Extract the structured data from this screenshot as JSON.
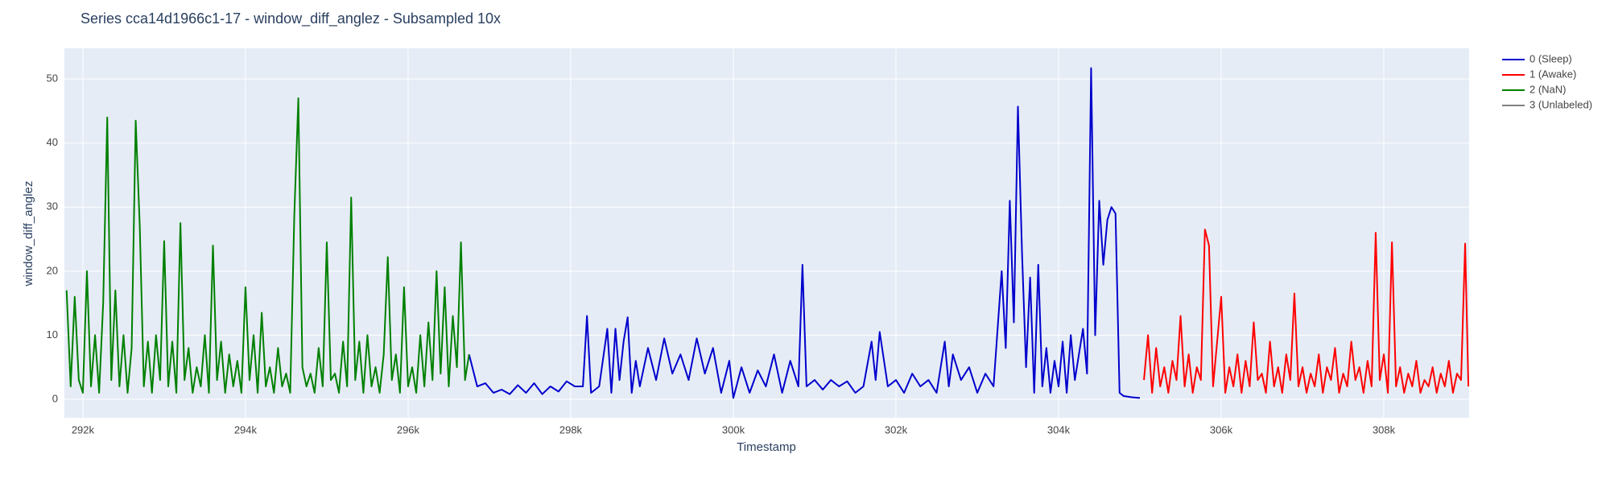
{
  "chart_data": {
    "type": "line",
    "title": "Series cca14d1966c1-17 - window_diff_anglez - Subsampled 10x",
    "x_label": "Timestamp",
    "y_label": "window_diff_anglez",
    "xlim": [
      291773,
      309049
    ],
    "ylim": [
      -2.9,
      54.8
    ],
    "xticks": [
      {
        "value": 292000,
        "label": "292k"
      },
      {
        "value": 294000,
        "label": "294k"
      },
      {
        "value": 296000,
        "label": "296k"
      },
      {
        "value": 298000,
        "label": "298k"
      },
      {
        "value": 300000,
        "label": "300k"
      },
      {
        "value": 302000,
        "label": "302k"
      },
      {
        "value": 304000,
        "label": "304k"
      },
      {
        "value": 306000,
        "label": "306k"
      },
      {
        "value": 308000,
        "label": "308k"
      }
    ],
    "yticks": [
      0,
      10,
      20,
      30,
      40,
      50
    ],
    "grid": true,
    "legend": "right",
    "series": [
      {
        "name": "0 (Sleep)",
        "color": "#0000cc",
        "x": [
          296750,
          296850,
          296950,
          297050,
          297150,
          297250,
          297350,
          297450,
          297550,
          297650,
          297750,
          297850,
          297950,
          298050,
          298150,
          298200,
          298250,
          298350,
          298450,
          298500,
          298550,
          298600,
          298650,
          298700,
          298750,
          298800,
          298850,
          298950,
          299050,
          299150,
          299250,
          299350,
          299450,
          299550,
          299650,
          299750,
          299850,
          299950,
          300000,
          300100,
          300200,
          300300,
          300400,
          300500,
          300600,
          300700,
          300800,
          300850,
          300900,
          301000,
          301100,
          301200,
          301300,
          301400,
          301500,
          301600,
          301700,
          301750,
          301800,
          301900,
          302000,
          302100,
          302200,
          302300,
          302400,
          302500,
          302600,
          302650,
          302700,
          302800,
          302900,
          303000,
          303100,
          303200,
          303300,
          303350,
          303400,
          303450,
          303500,
          303550,
          303600,
          303650,
          303700,
          303750,
          303800,
          303850,
          303900,
          303950,
          304000,
          304050,
          304100,
          304150,
          304200,
          304250,
          304300,
          304350,
          304400,
          304450,
          304500,
          304550,
          304600,
          304650,
          304700,
          304750,
          304800,
          304900,
          305000
        ],
        "values": [
          7,
          2,
          2.5,
          1,
          1.5,
          0.8,
          2.2,
          1,
          2.5,
          0.8,
          2,
          1.2,
          2.8,
          2,
          2,
          13,
          1,
          2,
          11,
          1,
          11,
          3,
          9,
          12.8,
          1,
          6,
          2,
          8,
          3,
          9.5,
          4,
          7,
          3,
          9.5,
          4,
          8,
          1,
          6,
          0.2,
          5,
          1,
          4.5,
          2,
          7,
          1,
          6,
          2,
          21,
          2,
          3,
          1.5,
          3,
          2,
          2.8,
          1,
          2,
          9,
          3,
          10.5,
          2,
          3,
          1,
          4,
          2,
          3,
          1,
          9,
          2,
          7,
          3,
          5,
          1,
          4,
          2,
          20,
          8,
          31,
          12,
          45.7,
          23,
          5,
          19,
          1,
          21,
          2,
          8,
          1,
          6,
          2,
          9,
          1,
          10,
          3,
          7,
          11,
          4,
          51.7,
          10,
          31,
          21,
          28,
          30,
          29,
          1,
          0.5,
          0.3,
          0.2
        ]
      },
      {
        "name": "1 (Awake)",
        "color": "#ff0000",
        "x": [
          305050,
          305100,
          305150,
          305200,
          305250,
          305300,
          305350,
          305400,
          305450,
          305500,
          305550,
          305600,
          305650,
          305700,
          305750,
          305800,
          305850,
          305900,
          305950,
          306000,
          306050,
          306100,
          306150,
          306200,
          306250,
          306300,
          306350,
          306400,
          306450,
          306500,
          306550,
          306600,
          306650,
          306700,
          306750,
          306800,
          306850,
          306900,
          306950,
          307000,
          307050,
          307100,
          307150,
          307200,
          307250,
          307300,
          307350,
          307400,
          307450,
          307500,
          307550,
          307600,
          307650,
          307700,
          307750,
          307800,
          307850,
          307900,
          307950,
          308000,
          308050,
          308100,
          308150,
          308200,
          308250,
          308300,
          308350,
          308400,
          308450,
          308500,
          308550,
          308600,
          308650,
          308700,
          308750,
          308800,
          308850,
          308900,
          308950,
          309000,
          309040
        ],
        "values": [
          3,
          10,
          1,
          8,
          2,
          5,
          1,
          6,
          3,
          13,
          2,
          7,
          1,
          5,
          3,
          26.5,
          24,
          2,
          9,
          16,
          1,
          5,
          2,
          7,
          1,
          6,
          2,
          12,
          3,
          4,
          1,
          9,
          2,
          5,
          1,
          7,
          3,
          16.5,
          2,
          5,
          1,
          4,
          2,
          7,
          1,
          5,
          3,
          8,
          1,
          4,
          2,
          9,
          3,
          5,
          1,
          6,
          2,
          26,
          3,
          7,
          1,
          24.5,
          2,
          5,
          1,
          4,
          2,
          6,
          1,
          3,
          2,
          5,
          1,
          4,
          2,
          6,
          1,
          4,
          3,
          24.3,
          2
        ]
      },
      {
        "name": "2 (NaN)",
        "color": "#008000",
        "x": [
          291800,
          291850,
          291900,
          291950,
          292000,
          292050,
          292100,
          292150,
          292200,
          292250,
          292300,
          292350,
          292400,
          292450,
          292500,
          292550,
          292600,
          292650,
          292700,
          292750,
          292800,
          292850,
          292900,
          292950,
          293000,
          293050,
          293100,
          293150,
          293200,
          293250,
          293300,
          293350,
          293400,
          293450,
          293500,
          293550,
          293600,
          293650,
          293700,
          293750,
          293800,
          293850,
          293900,
          293950,
          294000,
          294050,
          294100,
          294150,
          294200,
          294250,
          294300,
          294350,
          294400,
          294450,
          294500,
          294550,
          294600,
          294650,
          294700,
          294750,
          294800,
          294850,
          294900,
          294950,
          295000,
          295050,
          295100,
          295150,
          295200,
          295250,
          295300,
          295350,
          295400,
          295450,
          295500,
          295550,
          295600,
          295650,
          295700,
          295750,
          295800,
          295850,
          295900,
          295950,
          296000,
          296050,
          296100,
          296150,
          296200,
          296250,
          296300,
          296350,
          296400,
          296450,
          296500,
          296550,
          296600,
          296650,
          296700,
          296750
        ],
        "values": [
          17,
          2,
          16,
          3,
          1,
          20,
          2,
          10,
          1,
          15,
          44,
          3,
          17,
          2,
          10,
          1,
          8,
          43.5,
          27,
          2,
          9,
          1,
          10,
          3,
          24.7,
          2,
          9,
          1,
          27.5,
          3,
          8,
          1,
          5,
          2,
          10,
          1,
          24,
          3,
          9,
          1,
          7,
          2,
          6,
          1,
          17.5,
          3,
          10,
          1,
          13.5,
          2,
          5,
          1,
          8,
          2,
          4,
          1,
          28.5,
          47,
          5,
          2,
          4,
          1,
          8,
          2,
          24.5,
          3,
          4,
          1,
          9,
          2,
          31.5,
          3,
          9,
          1,
          10,
          2,
          5,
          1,
          7,
          22.2,
          3,
          7,
          1,
          17.5,
          2,
          5,
          1,
          10,
          2,
          12,
          3,
          20,
          4,
          17.5,
          2,
          13,
          5,
          24.5,
          3,
          7
        ]
      },
      {
        "name": "3 (Unlabeled)",
        "color": "#808080",
        "x": [],
        "values": []
      }
    ]
  }
}
